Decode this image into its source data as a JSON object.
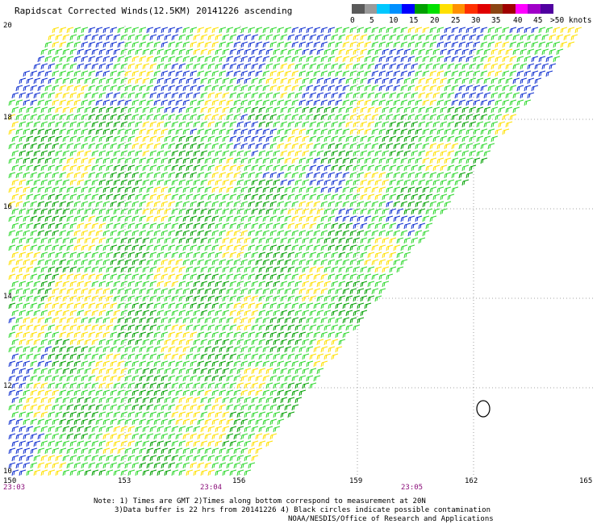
{
  "title": "Rapidscat Corrected Winds(12.5KM) 20141226 ascending",
  "legend": {
    "colors": [
      "#5a5a5a",
      "#9a9a9a",
      "#00c8ff",
      "#0090ff",
      "#0000ff",
      "#00a000",
      "#00e000",
      "#ffe000",
      "#ff9000",
      "#ff3000",
      "#e00000",
      "#8b4513",
      "#a00000",
      "#ff00ff",
      "#a000c8",
      "#5000a0"
    ],
    "labels": [
      "0",
      "5",
      "10",
      "15",
      "20",
      "25",
      "30",
      "35",
      "40",
      "45",
      ">50 knots"
    ]
  },
  "map": {
    "lat_labels": [
      "20",
      "18",
      "16",
      "14",
      "12",
      "10"
    ],
    "lon_labels": [
      "150",
      "153",
      "156",
      "159",
      "162",
      "165"
    ],
    "time_labels": [
      "23:03",
      "23:04",
      "23:05"
    ]
  },
  "notes": {
    "line1": "Note: 1) Times are GMT 2)Times along bottom correspond to measurement at 20N",
    "line2": "3)Data buffer is 22 hrs from 20141226 4) Black circles indicate possible contamination",
    "line3": "NOAA/NESDIS/Office of Research and Applications"
  }
}
